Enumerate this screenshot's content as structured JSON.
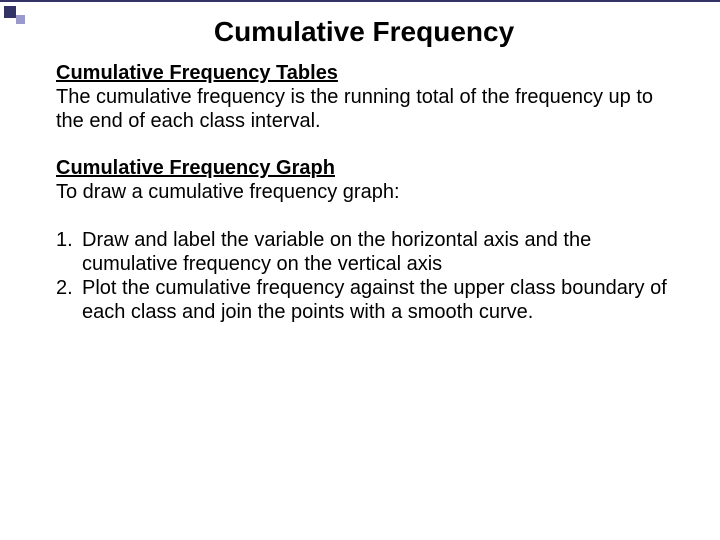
{
  "theme": {
    "accent_color": "#333366",
    "accent_light": "#9999cc",
    "background": "#ffffff",
    "text_color": "#000000",
    "title_fontsize": 28,
    "body_fontsize": 20
  },
  "title": "Cumulative Frequency",
  "sections": [
    {
      "heading": "Cumulative Frequency Tables",
      "body": "The cumulative frequency is the running total of the frequency up to the end of each class interval."
    },
    {
      "heading": "Cumulative Frequency Graph",
      "body": "To draw a cumulative frequency graph:"
    }
  ],
  "steps": [
    {
      "num": "1.",
      "text": "Draw and label the variable on the horizontal axis and the cumulative frequency on the vertical axis"
    },
    {
      "num": "2.",
      "text": "Plot the cumulative frequency against the upper class boundary of each class and join the points with a smooth curve."
    }
  ]
}
